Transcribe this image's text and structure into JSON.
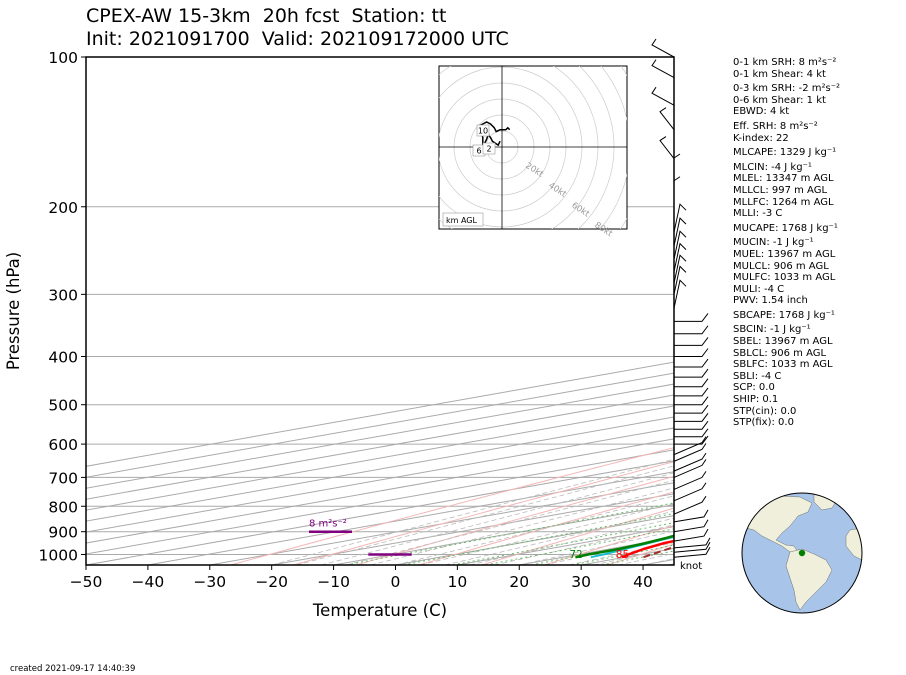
{
  "header": {
    "title_line1": "CPEX-AW 15-3km  20h fcst  Station: tt",
    "title_line2": "Init: 2021091700  Valid: 202109172000 UTC"
  },
  "footer": {
    "created": "created 2021-09-17 14:40:39"
  },
  "stats": [
    {
      "text": "0-1 km SRH: 8 m²s⁻²",
      "gap": false
    },
    {
      "text": "0-1 km Shear: 4 kt",
      "gap": false
    },
    {
      "text": "0-3 km SRH: -2 m²s⁻²",
      "gap": true
    },
    {
      "text": "0-6 km Shear: 1 kt",
      "gap": false
    },
    {
      "text": "EBWD: 4 kt",
      "gap": false
    },
    {
      "text": "Eff. SRH: 8 m²s⁻²",
      "gap": true
    },
    {
      "text": "K-index: 22",
      "gap": false
    },
    {
      "text": "MLCAPE: 1329 J kg⁻¹",
      "gap": true
    },
    {
      "text": "MLCIN: -4 J kg⁻¹",
      "gap": true
    },
    {
      "text": "MLEL: 13347 m AGL",
      "gap": false
    },
    {
      "text": "MLLCL: 997 m AGL",
      "gap": false
    },
    {
      "text": "MLLFC: 1264 m AGL",
      "gap": false
    },
    {
      "text": "MLLI: -3 C",
      "gap": false
    },
    {
      "text": "MUCAPE: 1768 J kg⁻¹",
      "gap": true
    },
    {
      "text": "MUCIN: -1 J kg⁻¹",
      "gap": true
    },
    {
      "text": "MUEL: 13967 m AGL",
      "gap": false
    },
    {
      "text": "MULCL: 906 m AGL",
      "gap": false
    },
    {
      "text": "MULFC: 1033 m AGL",
      "gap": false
    },
    {
      "text": "MULI: -4 C",
      "gap": false
    },
    {
      "text": "PWV: 1.54 inch",
      "gap": false
    },
    {
      "text": "SBCAPE: 1768 J kg⁻¹",
      "gap": true
    },
    {
      "text": "SBCIN: -1 J kg⁻¹",
      "gap": true
    },
    {
      "text": "SBEL: 13967 m AGL",
      "gap": false
    },
    {
      "text": "SBLCL: 906 m AGL",
      "gap": false
    },
    {
      "text": "SBLFC: 1033 m AGL",
      "gap": false
    },
    {
      "text": "SBLI: -4 C",
      "gap": false
    },
    {
      "text": "SCP: 0.0",
      "gap": false
    },
    {
      "text": "SHIP: 0.1",
      "gap": false
    },
    {
      "text": "STP(cin): 0.0",
      "gap": false
    },
    {
      "text": "STP(fix): 0.0",
      "gap": false
    }
  ],
  "chart_data": {
    "type": "line",
    "subtype": "skew-T log-P",
    "xlabel": "Temperature (C)",
    "ylabel": "Pressure (hPa)",
    "xlim": [
      -50,
      45
    ],
    "ylim": [
      1050,
      100
    ],
    "y_scale": "log",
    "x_ticks": [
      "−50",
      "−40",
      "−30",
      "−20",
      "−10",
      "0",
      "10",
      "20",
      "30",
      "40"
    ],
    "y_ticks": [
      "100",
      "200",
      "300",
      "400",
      "500",
      "600",
      "700",
      "800",
      "900",
      "1000"
    ],
    "grid": true,
    "colors": {
      "temperature": "#ff0000",
      "dewpoint": "#008000",
      "virtual_temperature": "#17becf",
      "parcel": "#a52a2a",
      "srh_marker": "#800080",
      "dry_adiabat": "#f4b6b6",
      "moist_adiabat": "#bbbbbb",
      "mixing_ratio": "#66bb66"
    },
    "series": [
      {
        "key": "temperature",
        "points": [
          [
            1013,
            29.5
          ],
          [
            1000,
            28
          ],
          [
            975,
            25.5
          ],
          [
            950,
            23.5
          ],
          [
            925,
            22.5
          ],
          [
            900,
            21.5
          ],
          [
            850,
            19.5
          ],
          [
            800,
            17.5
          ],
          [
            775,
            15.5
          ],
          [
            750,
            14
          ],
          [
            725,
            13
          ],
          [
            700,
            12.8
          ],
          [
            650,
            12.5
          ],
          [
            600,
            11.5
          ],
          [
            575,
            11
          ],
          [
            550,
            10.5
          ],
          [
            500,
            7.5
          ],
          [
            450,
            4.5
          ],
          [
            400,
            1
          ],
          [
            350,
            -4
          ],
          [
            300,
            -9.5
          ],
          [
            250,
            -16.5
          ],
          [
            200,
            -25
          ],
          [
            150,
            -38
          ],
          [
            120,
            -47
          ],
          [
            100,
            -55
          ]
        ]
      },
      {
        "key": "virtual_temperature",
        "points": [
          [
            1013,
            24.5
          ],
          [
            1000,
            24
          ],
          [
            975,
            22.5
          ],
          [
            950,
            21
          ],
          [
            925,
            19.5
          ],
          [
            900,
            17.5
          ],
          [
            850,
            14.5
          ],
          [
            800,
            12
          ],
          [
            775,
            10.8
          ],
          [
            750,
            10
          ],
          [
            725,
            9
          ],
          [
            700,
            8.5
          ],
          [
            675,
            9
          ],
          [
            650,
            10.5
          ],
          [
            600,
            10.5
          ],
          [
            575,
            8
          ],
          [
            550,
            5
          ],
          [
            500,
            2
          ],
          [
            450,
            -1
          ],
          [
            400,
            -4
          ],
          [
            350,
            -8.5
          ],
          [
            300,
            -14
          ],
          [
            250,
            -19.5
          ],
          [
            200,
            -27.5
          ],
          [
            150,
            -39.5
          ],
          [
            120,
            -47.5
          ],
          [
            100,
            -55
          ]
        ]
      },
      {
        "key": "dewpoint",
        "points": [
          [
            1013,
            22
          ],
          [
            1000,
            21.5
          ],
          [
            975,
            21.5
          ],
          [
            950,
            20.5
          ],
          [
            925,
            19
          ],
          [
            900,
            17
          ],
          [
            875,
            14
          ],
          [
            850,
            12.5
          ],
          [
            800,
            7
          ],
          [
            775,
            6.5
          ],
          [
            750,
            6
          ],
          [
            700,
            1
          ],
          [
            675,
            1.5
          ],
          [
            650,
            5
          ],
          [
            625,
            9.5
          ],
          [
            600,
            4
          ],
          [
            575,
            -6
          ],
          [
            550,
            -18
          ],
          [
            535,
            -38
          ],
          [
            500,
            -25
          ],
          [
            475,
            -30
          ],
          [
            450,
            -28
          ],
          [
            425,
            -25
          ],
          [
            400,
            -20
          ],
          [
            375,
            -19
          ],
          [
            350,
            -19
          ],
          [
            325,
            -24
          ],
          [
            300,
            -29
          ],
          [
            275,
            -24
          ],
          [
            250,
            -29
          ],
          [
            200,
            -42
          ],
          [
            150,
            -55
          ],
          [
            120,
            -60
          ],
          [
            100,
            -68
          ]
        ]
      },
      {
        "key": "parcel",
        "points": [
          [
            1013,
            33
          ],
          [
            950,
            27
          ],
          [
            900,
            25
          ],
          [
            850,
            22.5
          ],
          [
            800,
            20.5
          ],
          [
            750,
            18.5
          ],
          [
            700,
            16.5
          ],
          [
            650,
            14.5
          ],
          [
            600,
            12.5
          ],
          [
            550,
            10.5
          ],
          [
            500,
            8
          ],
          [
            450,
            5.5
          ],
          [
            400,
            2.5
          ],
          [
            350,
            -1
          ],
          [
            300,
            -5.5
          ],
          [
            250,
            -12
          ],
          [
            200,
            -21
          ],
          [
            150,
            -34.5
          ],
          [
            120,
            -45
          ],
          [
            100,
            -53
          ]
        ]
      }
    ],
    "surface_labels": [
      {
        "text": "72",
        "temp_c": 22,
        "color": "#008000"
      },
      {
        "text": "85",
        "temp_c": 29.5,
        "color": "#ff0000"
      }
    ],
    "srh_label": "8 m²s⁻²",
    "wind_unit_label": "knot",
    "hodograph": {
      "ring_labels": [
        "20kt",
        "40kt",
        "60kt",
        "80kt"
      ],
      "level_labels": [
        "10",
        "6",
        "2"
      ],
      "corner_label": "km AGL",
      "trace_kt": [
        [
          -1,
          3
        ],
        [
          -2,
          1
        ],
        [
          -5,
          3
        ],
        [
          -6,
          5
        ],
        [
          -7,
          6
        ],
        [
          -7,
          7
        ],
        [
          -8,
          4
        ],
        [
          -9,
          2
        ],
        [
          -9,
          -2
        ],
        [
          -10,
          1
        ],
        [
          -10,
          5
        ],
        [
          -12,
          11
        ],
        [
          -10,
          12
        ],
        [
          -8,
          13
        ],
        [
          -6,
          12
        ],
        [
          -4,
          10
        ],
        [
          -3,
          8
        ],
        [
          -1,
          9
        ],
        [
          2,
          9
        ],
        [
          3,
          10
        ],
        [
          4,
          9
        ]
      ]
    },
    "map": {
      "station_lat": 10.7,
      "station_lon": -61.5,
      "marker_color": "#008000"
    }
  }
}
